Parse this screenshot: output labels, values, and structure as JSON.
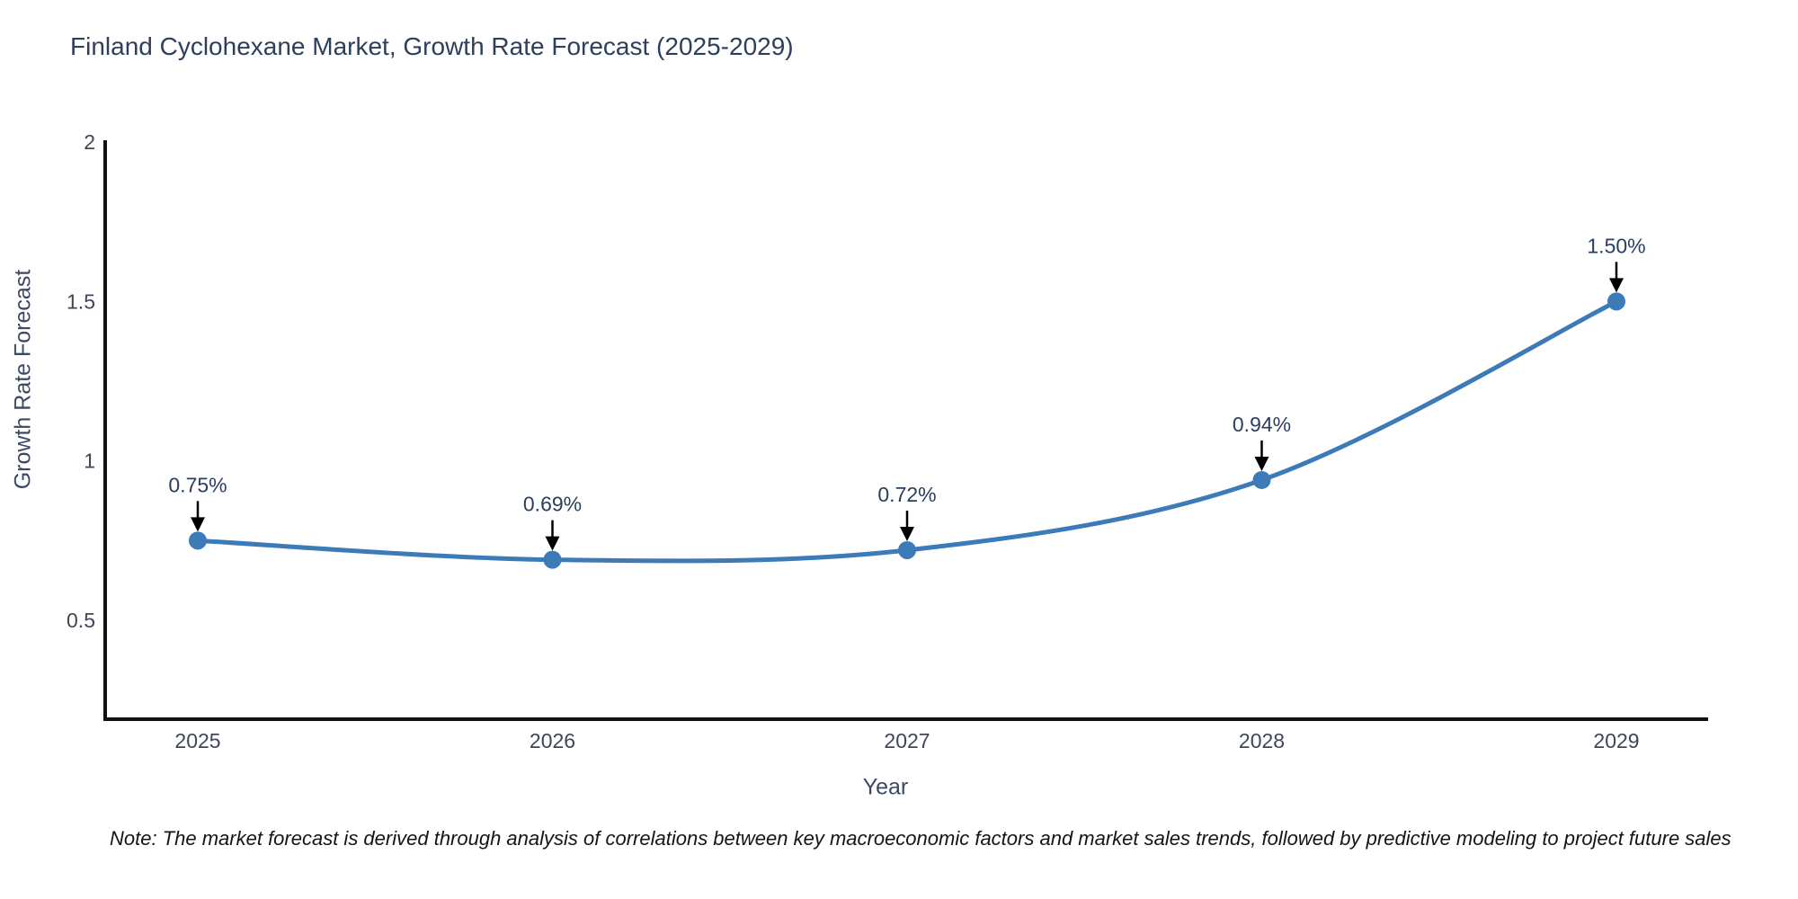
{
  "page": {
    "note": "Note: The market forecast is derived through analysis of correlations between key macroeconomic factors and market sales trends, followed by predictive modeling to project future sales"
  },
  "chart_data": {
    "type": "line",
    "title": "Finland Cyclohexane Market, Growth Rate Forecast (2025-2029)",
    "xlabel": "Year",
    "ylabel": "Growth Rate Forecast",
    "categories": [
      "2025",
      "2026",
      "2027",
      "2028",
      "2029"
    ],
    "series": [
      {
        "name": "Growth Rate Forecast",
        "values": [
          0.75,
          0.69,
          0.72,
          0.94,
          1.5
        ],
        "point_labels": [
          "0.75%",
          "0.69%",
          "0.72%",
          "0.94%",
          "1.50%"
        ]
      }
    ],
    "yticks": [
      0.5,
      1,
      1.5,
      2
    ],
    "ylim": [
      0.19,
      2.0
    ],
    "line_shape": "spline",
    "grid": false,
    "legend_position": "none",
    "line_color": "#3d7ab8",
    "marker_color": "#3d7ab8",
    "annotation_arrow_color": "#000000",
    "axis_line_color": "#111111"
  }
}
